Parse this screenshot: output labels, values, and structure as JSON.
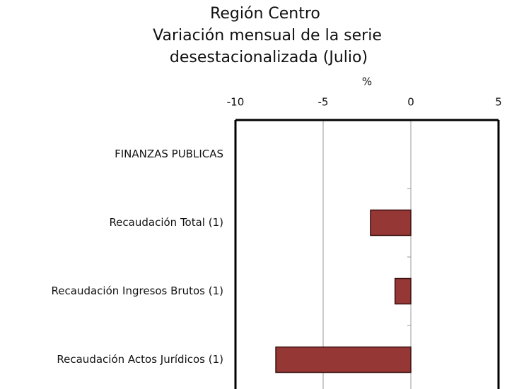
{
  "chart_data": {
    "type": "hbar",
    "title": [
      "Región Centro",
      "Variación mensual de la serie",
      "desestacionalizada (Julio)"
    ],
    "x_label": "%",
    "categories": [
      "FINANZAS PUBLICAS",
      "Recaudación Total  (1)",
      "Recaudación Ingresos Brutos  (1)",
      "Recaudación Actos Jurídicos  (1)"
    ],
    "values": [
      null,
      -2.3,
      -0.9,
      -7.7
    ],
    "color": "#953735",
    "xlim": [
      -10,
      5
    ],
    "xticks": [
      -10,
      -5,
      0,
      5
    ],
    "grid": true
  }
}
